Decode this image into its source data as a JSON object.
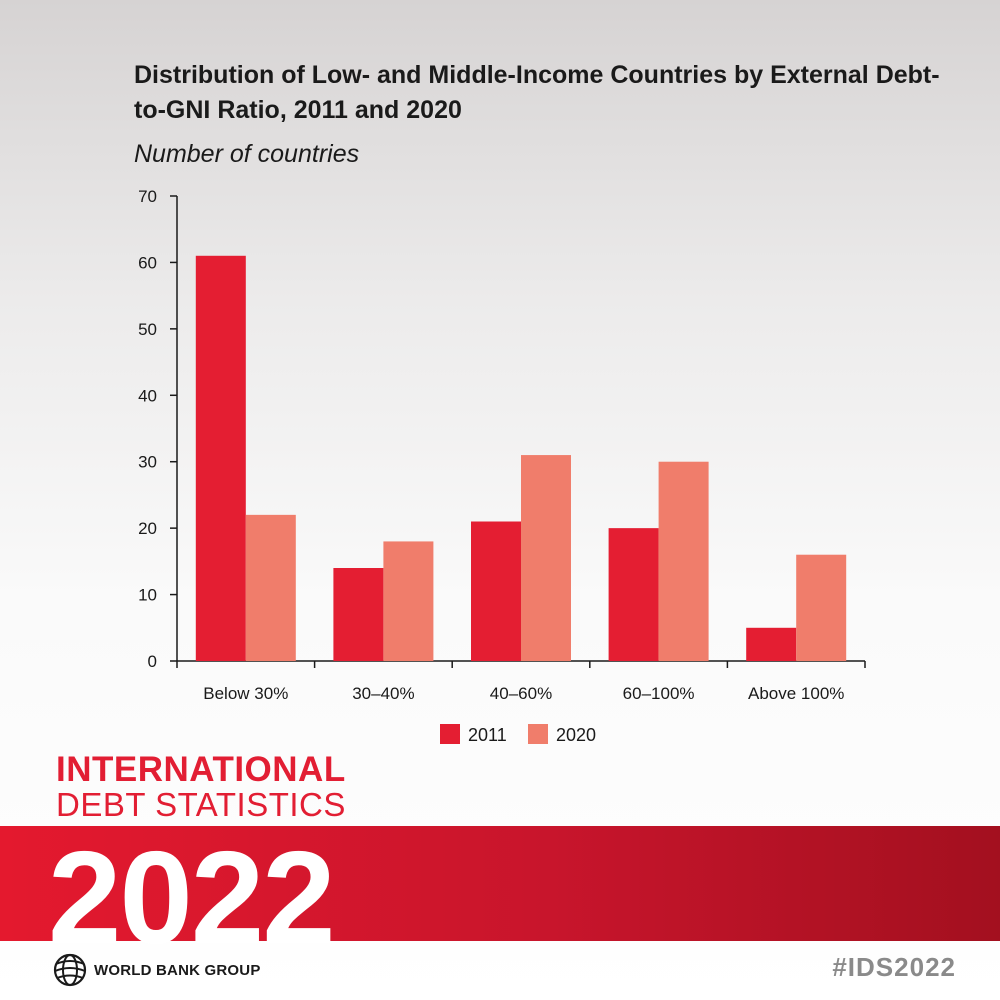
{
  "chart_data": {
    "type": "bar",
    "title": "Distribution of Low- and Middle-Income Countries by External Debt-to-GNI Ratio, 2011 and 2020",
    "subtitle": "Number of countries",
    "categories": [
      "Below 30%",
      "30–40%",
      "40–60%",
      "60–100%",
      "Above 100%"
    ],
    "series": [
      {
        "name": "2011",
        "values": [
          61,
          14,
          21,
          20,
          5
        ],
        "color": "#e41e32"
      },
      {
        "name": "2020",
        "values": [
          22,
          18,
          31,
          30,
          16
        ],
        "color": "#f07d6b"
      }
    ],
    "yticks": [
      "0",
      "10",
      "20",
      "30",
      "40",
      "50",
      "60",
      "70"
    ],
    "ylim": [
      0,
      70
    ],
    "grid": false,
    "legend": "bottom-center"
  },
  "branding": {
    "line1": "INTERNATIONAL",
    "line2": "DEBT STATISTICS",
    "year": "2022",
    "org": "WORLD BANK GROUP",
    "hashtag": "#IDS2022",
    "logo_icon": "globe-icon"
  }
}
